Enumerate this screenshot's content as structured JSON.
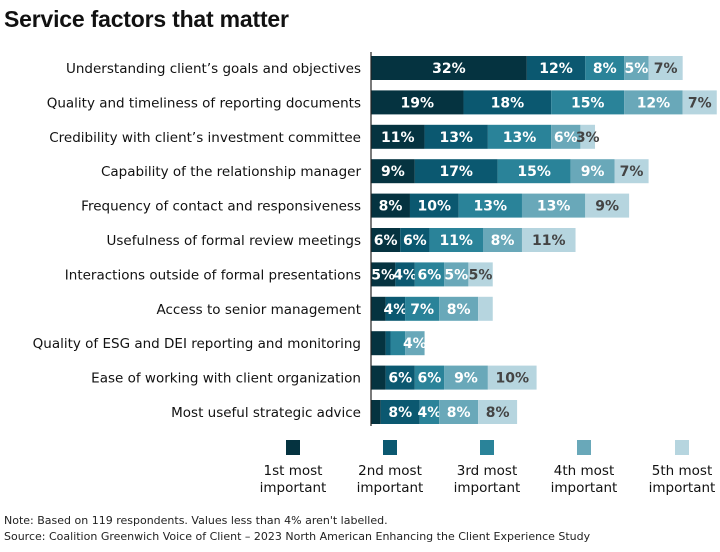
{
  "title": "Service factors that matter",
  "colors": [
    "#053340",
    "#0b5870",
    "#2a8399",
    "#69a8b9",
    "#b6d5df"
  ],
  "chart_data": {
    "type": "bar",
    "orientation": "horizontal",
    "stacked": true,
    "title": "Service factors that matter",
    "categories": [
      "Understanding client’s goals and objectives",
      "Quality and timeliness of reporting documents",
      "Credibility with client’s investment committee",
      "Capability of the relationship manager",
      "Frequency of contact and responsiveness",
      "Usefulness of formal review meetings",
      "Interactions outside of formal presentations",
      "Access to senior management",
      "Quality of ESG and DEI reporting and monitoring",
      "Ease of working with client organization",
      "Most useful strategic advice"
    ],
    "series": [
      {
        "name": "1st most important",
        "values": [
          32,
          19,
          11,
          9,
          8,
          6,
          5,
          3,
          3,
          3,
          2
        ],
        "labels": [
          "32%",
          "19%",
          "11%",
          "9%",
          "8%",
          "6%",
          "5%",
          "",
          "",
          "",
          ""
        ]
      },
      {
        "name": "2nd most important",
        "values": [
          12,
          18,
          13,
          17,
          10,
          6,
          4,
          4,
          1,
          6,
          8
        ],
        "labels": [
          "12%",
          "18%",
          "13%",
          "17%",
          "10%",
          "6%",
          "4%",
          "4%",
          "",
          "6%",
          "8%"
        ]
      },
      {
        "name": "3rd most important",
        "values": [
          8,
          15,
          13,
          15,
          13,
          11,
          6,
          7,
          3,
          6,
          4
        ],
        "labels": [
          "8%",
          "15%",
          "13%",
          "15%",
          "13%",
          "11%",
          "6%",
          "7%",
          "",
          "6%",
          "4%"
        ]
      },
      {
        "name": "4th most important",
        "values": [
          5,
          12,
          6,
          9,
          13,
          8,
          5,
          8,
          4,
          9,
          8
        ],
        "labels": [
          "5%",
          "12%",
          "6%",
          "9%",
          "13%",
          "8%",
          "5%",
          "8%",
          "4%",
          "9%",
          "8%"
        ]
      },
      {
        "name": "5th most important",
        "values": [
          7,
          7,
          3,
          7,
          9,
          11,
          5,
          3,
          0,
          10,
          8
        ],
        "labels": [
          "7%",
          "7%",
          "3%",
          "7%",
          "9%",
          "11%",
          "5%",
          "",
          "",
          "10%",
          "8%"
        ]
      }
    ],
    "legend": {
      "position": "bottom",
      "entries": [
        [
          "1st most",
          "important"
        ],
        [
          "2nd most",
          "important"
        ],
        [
          "3rd most",
          "important"
        ],
        [
          "4th most",
          "important"
        ],
        [
          "5th most",
          "important"
        ]
      ]
    },
    "xlabel": "",
    "ylabel": "",
    "grid": false
  },
  "notes": {
    "note": "Note: Based on 119 respondents. Values less than 4% aren't labelled.",
    "source": "Source: Coalition Greenwich Voice of Client – 2023 North American Enhancing the Client Experience Study"
  }
}
